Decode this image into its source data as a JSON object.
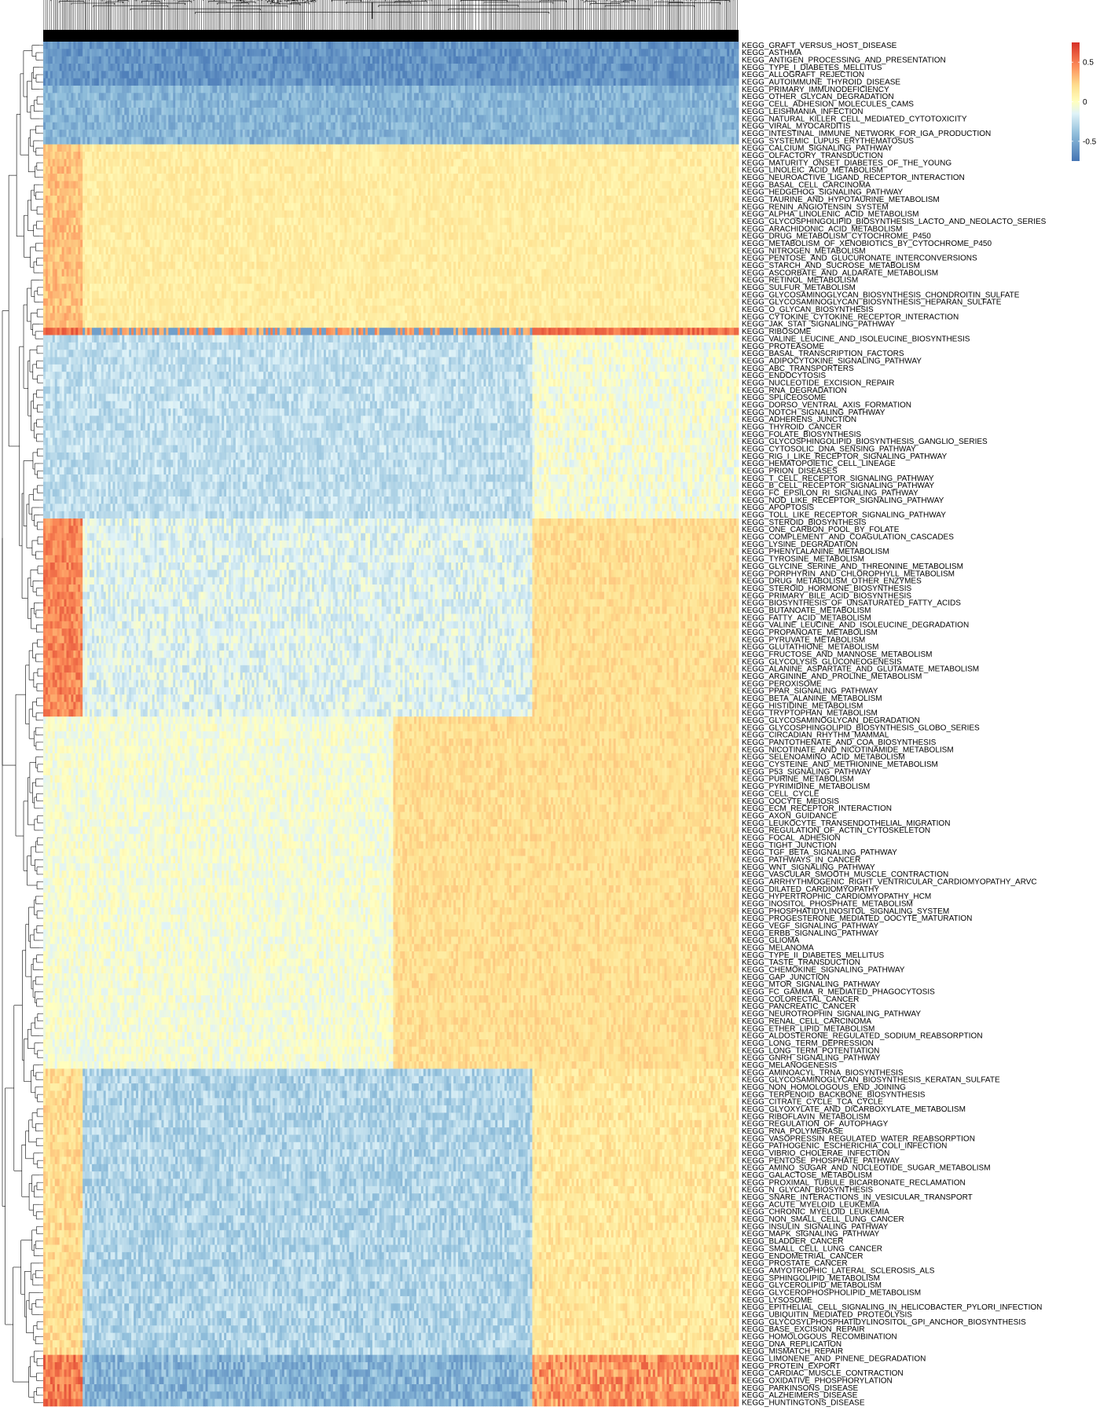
{
  "chart_data": {
    "type": "heatmap",
    "rows": [
      "KEGG_GRAFT_VERSUS_HOST_DISEASE",
      "KEGG_ASTHMA",
      "KEGG_ANTIGEN_PROCESSING_AND_PRESENTATION",
      "KEGG_TYPE_I_DIABETES_MELLITUS",
      "KEGG_ALLOGRAFT_REJECTION",
      "KEGG_AUTOIMMUNE_THYROID_DISEASE",
      "KEGG_PRIMARY_IMMUNODEFICIENCY",
      "KEGG_OTHER_GLYCAN_DEGRADATION",
      "KEGG_CELL_ADHESION_MOLECULES_CAMS",
      "KEGG_LEISHMANIA_INFECTION",
      "KEGG_NATURAL_KILLER_CELL_MEDIATED_CYTOTOXICITY",
      "KEGG_VIRAL_MYOCARDITIS",
      "KEGG_INTESTINAL_IMMUNE_NETWORK_FOR_IGA_PRODUCTION",
      "KEGG_SYSTEMIC_LUPUS_ERYTHEMATOSUS",
      "KEGG_CALCIUM_SIGNALING_PATHWAY",
      "KEGG_OLFACTORY_TRANSDUCTION",
      "KEGG_MATURITY_ONSET_DIABETES_OF_THE_YOUNG",
      "KEGG_LINOLEIC_ACID_METABOLISM",
      "KEGG_NEUROACTIVE_LIGAND_RECEPTOR_INTERACTION",
      "KEGG_BASAL_CELL_CARCINOMA",
      "KEGG_HEDGEHOG_SIGNALING_PATHWAY",
      "KEGG_TAURINE_AND_HYPOTAURINE_METABOLISM",
      "KEGG_RENIN_ANGIOTENSIN_SYSTEM",
      "KEGG_ALPHA_LINOLENIC_ACID_METABOLISM",
      "KEGG_GLYCOSPHINGOLIPID_BIOSYNTHESIS_LACTO_AND_NEOLACTO_SERIES",
      "KEGG_ARACHIDONIC_ACID_METABOLISM",
      "KEGG_DRUG_METABOLISM_CYTOCHROME_P450",
      "KEGG_METABOLISM_OF_XENOBIOTICS_BY_CYTOCHROME_P450",
      "KEGG_NITROGEN_METABOLISM",
      "KEGG_PENTOSE_AND_GLUCURONATE_INTERCONVERSIONS",
      "KEGG_STARCH_AND_SUCROSE_METABOLISM",
      "KEGG_ASCORBATE_AND_ALDARATE_METABOLISM",
      "KEGG_RETINOL_METABOLISM",
      "KEGG_SULFUR_METABOLISM",
      "KEGG_GLYCOSAMINOGLYCAN_BIOSYNTHESIS_CHONDROITIN_SULFATE",
      "KEGG_GLYCOSAMINOGLYCAN_BIOSYNTHESIS_HEPARAN_SULFATE",
      "KEGG_O_GLYCAN_BIOSYNTHESIS",
      "KEGG_CYTOKINE_CYTOKINE_RECEPTOR_INTERACTION",
      "KEGG_JAK_STAT_SIGNALING_PATHWAY",
      "KEGG_RIBOSOME",
      "KEGG_VALINE_LEUCINE_AND_ISOLEUCINE_BIOSYNTHESIS",
      "KEGG_PROTEASOME",
      "KEGG_BASAL_TRANSCRIPTION_FACTORS",
      "KEGG_ADIPOCYTOKINE_SIGNALING_PATHWAY",
      "KEGG_ABC_TRANSPORTERS",
      "KEGG_ENDOCYTOSIS",
      "KEGG_NUCLEOTIDE_EXCISION_REPAIR",
      "KEGG_RNA_DEGRADATION",
      "KEGG_SPLICEOSOME",
      "KEGG_DORSO_VENTRAL_AXIS_FORMATION",
      "KEGG_NOTCH_SIGNALING_PATHWAY",
      "KEGG_ADHERENS_JUNCTION",
      "KEGG_THYROID_CANCER",
      "KEGG_FOLATE_BIOSYNTHESIS",
      "KEGG_GLYCOSPHINGOLIPID_BIOSYNTHESIS_GANGLIO_SERIES",
      "KEGG_CYTOSOLIC_DNA_SENSING_PATHWAY",
      "KEGG_RIG_I_LIKE_RECEPTOR_SIGNALING_PATHWAY",
      "KEGG_HEMATOPOIETIC_CELL_LINEAGE",
      "KEGG_PRION_DISEASES",
      "KEGG_T_CELL_RECEPTOR_SIGNALING_PATHWAY",
      "KEGG_B_CELL_RECEPTOR_SIGNALING_PATHWAY",
      "KEGG_FC_EPSILON_RI_SIGNALING_PATHWAY",
      "KEGG_NOD_LIKE_RECEPTOR_SIGNALING_PATHWAY",
      "KEGG_APOPTOSIS",
      "KEGG_TOLL_LIKE_RECEPTOR_SIGNALING_PATHWAY",
      "KEGG_STEROID_BIOSYNTHESIS",
      "KEGG_ONE_CARBON_POOL_BY_FOLATE",
      "KEGG_COMPLEMENT_AND_COAGULATION_CASCADES",
      "KEGG_LYSINE_DEGRADATION",
      "KEGG_PHENYLALANINE_METABOLISM",
      "KEGG_TYROSINE_METABOLISM",
      "KEGG_GLYCINE_SERINE_AND_THREONINE_METABOLISM",
      "KEGG_PORPHYRIN_AND_CHLOROPHYLL_METABOLISM",
      "KEGG_DRUG_METABOLISM_OTHER_ENZYMES",
      "KEGG_STEROID_HORMONE_BIOSYNTHESIS",
      "KEGG_PRIMARY_BILE_ACID_BIOSYNTHESIS",
      "KEGG_BIOSYNTHESIS_OF_UNSATURATED_FATTY_ACIDS",
      "KEGG_BUTANOATE_METABOLISM",
      "KEGG_FATTY_ACID_METABOLISM",
      "KEGG_VALINE_LEUCINE_AND_ISOLEUCINE_DEGRADATION",
      "KEGG_PROPANOATE_METABOLISM",
      "KEGG_PYRUVATE_METABOLISM",
      "KEGG_GLUTATHIONE_METABOLISM",
      "KEGG_FRUCTOSE_AND_MANNOSE_METABOLISM",
      "KEGG_GLYCOLYSIS_GLUCONEOGENESIS",
      "KEGG_ALANINE_ASPARTATE_AND_GLUTAMATE_METABOLISM",
      "KEGG_ARGININE_AND_PROLINE_METABOLISM",
      "KEGG_PEROXISOME",
      "KEGG_PPAR_SIGNALING_PATHWAY",
      "KEGG_BETA_ALANINE_METABOLISM",
      "KEGG_HISTIDINE_METABOLISM",
      "KEGG_TRYPTOPHAN_METABOLISM",
      "KEGG_GLYCOSAMINOGLYCAN_DEGRADATION",
      "KEGG_GLYCOSPHINGOLIPID_BIOSYNTHESIS_GLOBO_SERIES",
      "KEGG_CIRCADIAN_RHYTHM_MAMMAL",
      "KEGG_PANTOTHENATE_AND_COA_BIOSYNTHESIS",
      "KEGG_NICOTINATE_AND_NICOTINAMIDE_METABOLISM",
      "KEGG_SELENOAMINO_ACID_METABOLISM",
      "KEGG_CYSTEINE_AND_METHIONINE_METABOLISM",
      "KEGG_P53_SIGNALING_PATHWAY",
      "KEGG_PURINE_METABOLISM",
      "KEGG_PYRIMIDINE_METABOLISM",
      "KEGG_CELL_CYCLE",
      "KEGG_OOCYTE_MEIOSIS",
      "KEGG_ECM_RECEPTOR_INTERACTION",
      "KEGG_AXON_GUIDANCE",
      "KEGG_LEUKOCYTE_TRANSENDOTHELIAL_MIGRATION",
      "KEGG_REGULATION_OF_ACTIN_CYTOSKELETON",
      "KEGG_FOCAL_ADHESION",
      "KEGG_TIGHT_JUNCTION",
      "KEGG_TGF_BETA_SIGNALING_PATHWAY",
      "KEGG_PATHWAYS_IN_CANCER",
      "KEGG_WNT_SIGNALING_PATHWAY",
      "KEGG_VASCULAR_SMOOTH_MUSCLE_CONTRACTION",
      "KEGG_ARRHYTHMOGENIC_RIGHT_VENTRICULAR_CARDIOMYOPATHY_ARVC",
      "KEGG_DILATED_CARDIOMYOPATHY",
      "KEGG_HYPERTROPHIC_CARDIOMYOPATHY_HCM",
      "KEGG_INOSITOL_PHOSPHATE_METABOLISM",
      "KEGG_PHOSPHATIDYLINOSITOL_SIGNALING_SYSTEM",
      "KEGG_PROGESTERONE_MEDIATED_OOCYTE_MATURATION",
      "KEGG_VEGF_SIGNALING_PATHWAY",
      "KEGG_ERBB_SIGNALING_PATHWAY",
      "KEGG_GLIOMA",
      "KEGG_MELANOMA",
      "KEGG_TYPE_II_DIABETES_MELLITUS",
      "KEGG_TASTE_TRANSDUCTION",
      "KEGG_CHEMOKINE_SIGNALING_PATHWAY",
      "KEGG_GAP_JUNCTION",
      "KEGG_MTOR_SIGNALING_PATHWAY",
      "KEGG_FC_GAMMA_R_MEDIATED_PHAGOCYTOSIS",
      "KEGG_COLORECTAL_CANCER",
      "KEGG_PANCREATIC_CANCER",
      "KEGG_NEUROTROPHIN_SIGNALING_PATHWAY",
      "KEGG_RENAL_CELL_CARCINOMA",
      "KEGG_ETHER_LIPID_METABOLISM",
      "KEGG_ALDOSTERONE_REGULATED_SODIUM_REABSORPTION",
      "KEGG_LONG_TERM_DEPRESSION",
      "KEGG_LONG_TERM_POTENTIATION",
      "KEGG_GNRH_SIGNALING_PATHWAY",
      "KEGG_MELANOGENESIS",
      "KEGG_AMINOACYL_TRNA_BIOSYNTHESIS",
      "KEGG_GLYCOSAMINOGLYCAN_BIOSYNTHESIS_KERATAN_SULFATE",
      "KEGG_NON_HOMOLOGOUS_END_JOINING",
      "KEGG_TERPENOID_BACKBONE_BIOSYNTHESIS",
      "KEGG_CITRATE_CYCLE_TCA_CYCLE",
      "KEGG_GLYOXYLATE_AND_DICARBOXYLATE_METABOLISM",
      "KEGG_RIBOFLAVIN_METABOLISM",
      "KEGG_REGULATION_OF_AUTOPHAGY",
      "KEGG_RNA_POLYMERASE",
      "KEGG_VASOPRESSIN_REGULATED_WATER_REABSORPTION",
      "KEGG_PATHOGENIC_ESCHERICHIA_COLI_INFECTION",
      "KEGG_VIBRIO_CHOLERAE_INFECTION",
      "KEGG_PENTOSE_PHOSPHATE_PATHWAY",
      "KEGG_AMINO_SUGAR_AND_NUCLEOTIDE_SUGAR_METABOLISM",
      "KEGG_GALACTOSE_METABOLISM",
      "KEGG_PROXIMAL_TUBULE_BICARBONATE_RECLAMATION",
      "KEGG_N_GLYCAN_BIOSYNTHESIS",
      "KEGG_SNARE_INTERACTIONS_IN_VESICULAR_TRANSPORT",
      "KEGG_ACUTE_MYELOID_LEUKEMIA",
      "KEGG_CHRONIC_MYELOID_LEUKEMIA",
      "KEGG_NON_SMALL_CELL_LUNG_CANCER",
      "KEGG_INSULIN_SIGNALING_PATHWAY",
      "KEGG_MAPK_SIGNALING_PATHWAY",
      "KEGG_BLADDER_CANCER",
      "KEGG_SMALL_CELL_LUNG_CANCER",
      "KEGG_ENDOMETRIAL_CANCER",
      "KEGG_PROSTATE_CANCER",
      "KEGG_AMYOTROPHIC_LATERAL_SCLEROSIS_ALS",
      "KEGG_SPHINGOLIPID_METABOLISM",
      "KEGG_GLYCEROLIPID_METABOLISM",
      "KEGG_GLYCEROPHOSPHOLIPID_METABOLISM",
      "KEGG_LYSOSOME",
      "KEGG_EPITHELIAL_CELL_SIGNALING_IN_HELICOBACTER_PYLORI_INFECTION",
      "KEGG_UBIQUITIN_MEDIATED_PROTEOLYSIS",
      "KEGG_GLYCOSYLPHOSPHATIDYLINOSITOL_GPI_ANCHOR_BIOSYNTHESIS",
      "KEGG_BASE_EXCISION_REPAIR",
      "KEGG_HOMOLOGOUS_RECOMBINATION",
      "KEGG_DNA_REPLICATION",
      "KEGG_MISMATCH_REPAIR",
      "KEGG_LIMONENE_AND_PINENE_DEGRADATION",
      "KEGG_PROTEIN_EXPORT",
      "KEGG_CARDIAC_MUSCLE_CONTRACTION",
      "KEGG_OXIDATIVE_PHOSPHORYLATION",
      "KEGG_PARKINSONS_DISEASE",
      "KEGG_ALZHEIMERS_DISEASE",
      "KEGG_HUNTINGTONS_DISEASE"
    ],
    "row_group_means": [
      {
        "from": "KEGG_GRAFT_VERSUS_HOST_DISEASE",
        "to": "KEGG_AUTOIMMUNE_THYROID_DISEASE",
        "value": -0.6
      },
      {
        "from": "KEGG_PRIMARY_IMMUNODEFICIENCY",
        "to": "KEGG_SYSTEMIC_LUPUS_ERYTHEMATOSUS",
        "value": -0.45
      },
      {
        "from": "KEGG_CALCIUM_SIGNALING_PATHWAY",
        "to": "KEGG_JAK_STAT_SIGNALING_PATHWAY",
        "value": 0.15
      },
      {
        "from": "KEGG_RIBOSOME",
        "to": "KEGG_RIBOSOME",
        "value": 0.0
      },
      {
        "from": "KEGG_VALINE_LEUCINE_AND_ISOLEUCINE_BIOSYNTHESIS",
        "to": "KEGG_TOLL_LIKE_RECEPTOR_SIGNALING_PATHWAY",
        "value": -0.25
      },
      {
        "from": "KEGG_STEROID_BIOSYNTHESIS",
        "to": "KEGG_TRYPTOPHAN_METABOLISM",
        "value": 0.05
      },
      {
        "from": "KEGG_GLYCOSAMINOGLYCAN_DEGRADATION",
        "to": "KEGG_MELANOGENESIS",
        "value": 0.05
      },
      {
        "from": "KEGG_AMINOACYL_TRNA_BIOSYNTHESIS",
        "to": "KEGG_MISMATCH_REPAIR",
        "value": -0.2
      },
      {
        "from": "KEGG_LIMONENE_AND_PINENE_DEGRADATION",
        "to": "KEGG_HUNTINGTONS_DISEASE",
        "value": 0.1
      }
    ],
    "column_count_approx": 1500,
    "legend": {
      "type": "colorbar",
      "ticks": [
        0.5,
        0,
        -0.5
      ],
      "range": [
        -0.75,
        0.75
      ],
      "colors": {
        "high": "#d73027",
        "mid": "#ffffbf",
        "low": "#4575b4"
      }
    },
    "dendrograms": {
      "rows": true,
      "columns": true
    }
  }
}
